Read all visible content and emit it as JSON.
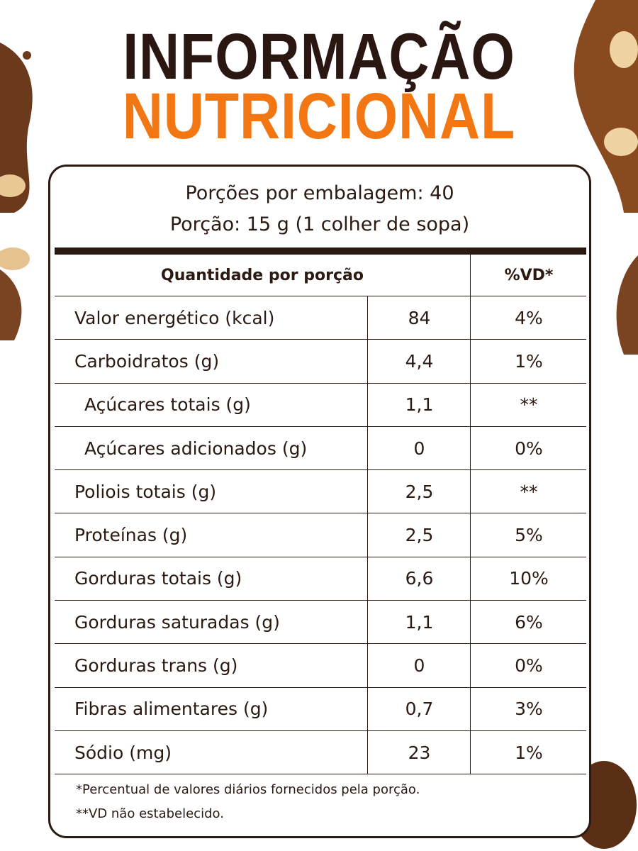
{
  "header": {
    "title_line1": "INFORMAÇÃO",
    "title_line2": "NUTRICIONAL"
  },
  "serving": {
    "per_package": "Porções por embalagem: 40",
    "portion": "Porção: 15 g (1 colher de sopa)"
  },
  "table": {
    "header": [
      "Quantidade por porção",
      "%VD*"
    ],
    "rows": [
      [
        "Valor energético (kcal)",
        "84",
        "4%"
      ],
      [
        "Carboidratos (g)",
        "4,4",
        "1%"
      ],
      [
        "Açúcares totais (g)",
        "1,1",
        "**"
      ],
      [
        "Açúcares adicionados (g)",
        "0",
        "0%"
      ],
      [
        "Poliois totais (g)",
        "2,5",
        "**"
      ],
      [
        "Proteínas (g)",
        "2,5",
        "5%"
      ],
      [
        "Gorduras totais (g)",
        "6,6",
        "10%"
      ],
      [
        "Gorduras saturadas (g)",
        "1,1",
        "6%"
      ],
      [
        "Gorduras trans (g)",
        "0",
        "0%"
      ],
      [
        "Fibras alimentares (g)",
        "0,7",
        "3%"
      ],
      [
        "Sódio (mg)",
        "23",
        "1%"
      ]
    ]
  },
  "footnotes": [
    "*Percentual de valores diários fornecidos pela porção.",
    "**VD não estabelecido."
  ]
}
